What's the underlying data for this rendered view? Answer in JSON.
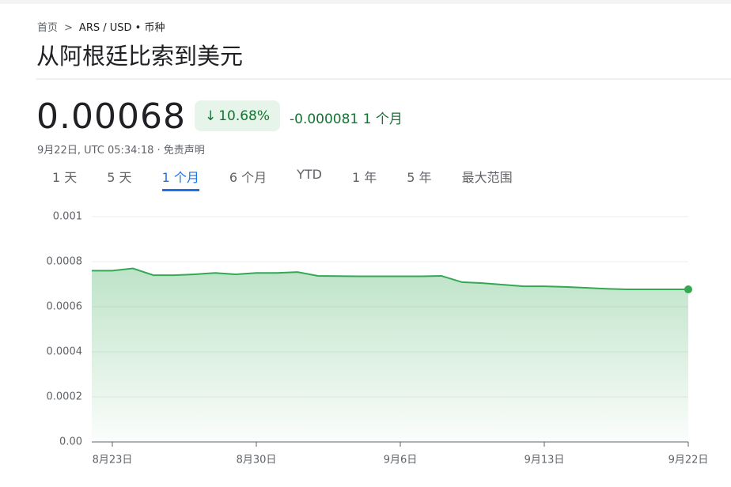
{
  "breadcrumb": {
    "home": "首页",
    "current": "ARS / USD • 币种"
  },
  "title": "从阿根廷比索到美元",
  "price": "0.00068",
  "change": {
    "percent": "10.68%",
    "absolute": "-0.000081",
    "period": "1 个月"
  },
  "timestamp": "9月22日, UTC 05:34:18 · 免责声明",
  "tabs": [
    "1 天",
    "5 天",
    "1 个月",
    "6 个月",
    "YTD",
    "1 年",
    "5 年",
    "最大范围"
  ],
  "active_tab": 2,
  "chart_data": {
    "type": "line",
    "categories": [
      null,
      "8月23日",
      null,
      null,
      null,
      null,
      null,
      null,
      "8月30日",
      null,
      null,
      null,
      null,
      null,
      null,
      "9月6日",
      null,
      null,
      null,
      null,
      null,
      null,
      "9月13日",
      null,
      null,
      null,
      null,
      null,
      null,
      "9月22日"
    ],
    "values": [
      0.00076,
      0.00076,
      0.00077,
      0.00074,
      0.00074,
      0.000744,
      0.00075,
      0.000744,
      0.00075,
      0.00075,
      0.000754,
      0.000737,
      0.000736,
      0.000735,
      0.000735,
      0.000735,
      0.000735,
      0.000737,
      0.000709,
      0.000705,
      0.000698,
      0.000691,
      0.000691,
      0.000688,
      0.000684,
      0.00068,
      0.000677,
      0.000677,
      0.000677,
      0.000677
    ],
    "color": "#34a853",
    "ylim": [
      0,
      0.001
    ],
    "yticks": [
      {
        "value": 0,
        "label": "0.00"
      },
      0.0002,
      0.0004,
      0.0006,
      0.0008,
      0.001
    ],
    "grid": true
  }
}
